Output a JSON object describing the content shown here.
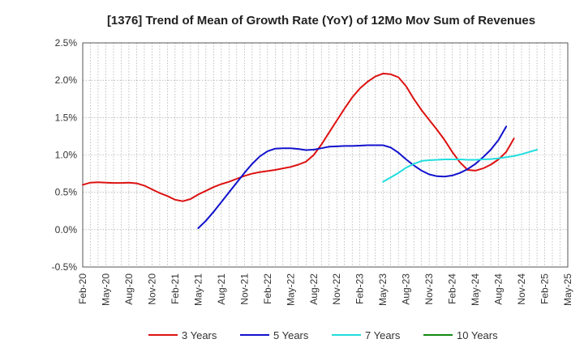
{
  "chart_data": {
    "type": "line",
    "title": "[1376]  Trend of Mean of Growth Rate (YoY) of 12Mo Mov Sum of Revenues",
    "xlabel": "",
    "ylabel": "",
    "ylim": [
      -0.5,
      2.5
    ],
    "y_ticks": [
      "2.5%",
      "2.0%",
      "1.5%",
      "1.0%",
      "0.5%",
      "0.0%",
      "-0.5%"
    ],
    "y_tick_values": [
      2.5,
      2.0,
      1.5,
      1.0,
      0.5,
      0.0,
      -0.5
    ],
    "x_tick_labels": [
      "Feb-20",
      "May-20",
      "Aug-20",
      "Nov-20",
      "Feb-21",
      "May-21",
      "Aug-21",
      "Nov-21",
      "Feb-22",
      "May-22",
      "Aug-22",
      "Nov-22",
      "Feb-23",
      "May-23",
      "Aug-23",
      "Nov-23",
      "Feb-24",
      "May-24",
      "Aug-24",
      "Nov-24",
      "Feb-25",
      "May-25"
    ],
    "x_month_count": 63,
    "grid": true,
    "legend_position": "bottom",
    "series": [
      {
        "name": "3 Years",
        "color": "#dd1111",
        "start_index": 0,
        "values": [
          0.6,
          0.63,
          0.635,
          0.63,
          0.625,
          0.625,
          0.63,
          0.62,
          0.59,
          0.54,
          0.49,
          0.45,
          0.4,
          0.38,
          0.41,
          0.47,
          0.52,
          0.57,
          0.61,
          0.64,
          0.68,
          0.72,
          0.75,
          0.77,
          0.785,
          0.8,
          0.82,
          0.84,
          0.87,
          0.91,
          1.0,
          1.14,
          1.3,
          1.46,
          1.62,
          1.77,
          1.89,
          1.98,
          2.05,
          2.09,
          2.08,
          2.04,
          1.92,
          1.75,
          1.6,
          1.47,
          1.34,
          1.2,
          1.04,
          0.9,
          0.8,
          0.79,
          0.82,
          0.87,
          0.94,
          1.04,
          1.22
        ]
      },
      {
        "name": "5 Years",
        "color": "#1111cc",
        "start_index": 15,
        "values": [
          0.02,
          0.12,
          0.24,
          0.37,
          0.5,
          0.63,
          0.76,
          0.88,
          0.98,
          1.05,
          1.085,
          1.09,
          1.09,
          1.08,
          1.065,
          1.07,
          1.09,
          1.11,
          1.115,
          1.12,
          1.12,
          1.125,
          1.13,
          1.13,
          1.13,
          1.1,
          1.03,
          0.94,
          0.86,
          0.79,
          0.74,
          0.715,
          0.71,
          0.725,
          0.76,
          0.81,
          0.88,
          0.97,
          1.07,
          1.2,
          1.38
        ]
      },
      {
        "name": "7 Years",
        "color": "#22dddd",
        "start_index": 39,
        "values": [
          0.64,
          0.7,
          0.76,
          0.83,
          0.88,
          0.92,
          0.93,
          0.935,
          0.94,
          0.94,
          0.94,
          0.935,
          0.935,
          0.94,
          0.945,
          0.955,
          0.97,
          0.985,
          1.01,
          1.04,
          1.07
        ]
      },
      {
        "name": "10 Years",
        "color": "#118811",
        "start_index": 0,
        "values": []
      }
    ]
  }
}
